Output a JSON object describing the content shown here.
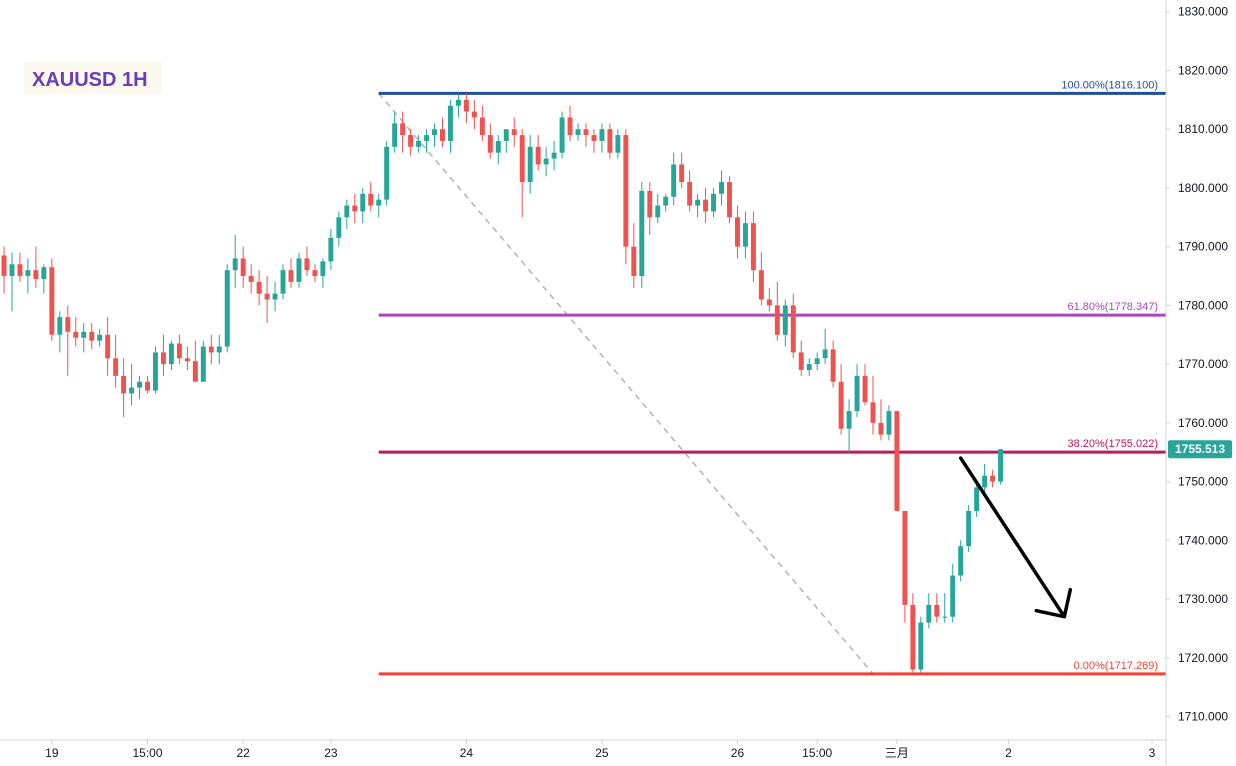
{
  "chart_data": {
    "type": "candlestick",
    "title": "XAUUSD 1H",
    "y_axis": {
      "ylim": [
        1706,
        1832
      ],
      "ticks": [
        "1830.000",
        "1820.000",
        "1810.000",
        "1800.000",
        "1790.000",
        "1780.000",
        "1770.000",
        "1760.000",
        "1750.000",
        "1740.000",
        "1730.000",
        "1720.000",
        "1710.000"
      ],
      "tick_values": [
        1830,
        1820,
        1810,
        1800,
        1790,
        1780,
        1770,
        1760,
        1750,
        1740,
        1730,
        1720,
        1710
      ],
      "position": "right"
    },
    "x_axis": {
      "ticks": [
        {
          "label": "19",
          "index": 6
        },
        {
          "label": "15:00",
          "index": 18
        },
        {
          "label": "22",
          "index": 30
        },
        {
          "label": "23",
          "index": 41
        },
        {
          "label": "24",
          "index": 58
        },
        {
          "label": "25",
          "index": 75
        },
        {
          "label": "26",
          "index": 92
        },
        {
          "label": "15:00",
          "index": 102
        },
        {
          "label": "三月",
          "index": 112
        },
        {
          "label": "2",
          "index": 126
        },
        {
          "label": "3",
          "index": 144
        }
      ],
      "index_range": [
        0,
        145
      ]
    },
    "colors": {
      "up": "#26a69a",
      "down": "#ef5350",
      "fib_100": "#1f4e9c",
      "fib_618": "#ab47bc",
      "fib_382": "#c2185b",
      "fib_0": "#f44336",
      "trend": "#b2b2b2",
      "price_badge": "#26a69a",
      "arrow": "#000000"
    },
    "price_label": "1755.513",
    "price_value": 1755.513,
    "fib_levels": [
      {
        "label": "100.00%(1816.100)",
        "value": 1816.1,
        "color_key": "fib_100"
      },
      {
        "label": "61.80%(1778.347)",
        "value": 1778.347,
        "color_key": "fib_618"
      },
      {
        "label": "38.20%(1755.022)",
        "value": 1755.022,
        "color_key": "fib_382"
      },
      {
        "label": "0.00%(1717.269)",
        "value": 1717.269,
        "color_key": "fib_0"
      }
    ],
    "fib_start_index": 47,
    "trend_line": {
      "from": [
        47,
        1816.1
      ],
      "to": [
        109,
        1717.269
      ]
    },
    "arrow": {
      "from": [
        120,
        1754
      ],
      "to": [
        133,
        1727
      ]
    },
    "candles": [
      [
        1788.5,
        1790.0,
        1782.0,
        1785.0
      ],
      [
        1785.0,
        1789.0,
        1779.0,
        1787.0
      ],
      [
        1787.0,
        1789.0,
        1784.0,
        1785.0
      ],
      [
        1785.0,
        1788.0,
        1782.0,
        1786.0
      ],
      [
        1786.0,
        1790.0,
        1783.0,
        1784.5
      ],
      [
        1784.5,
        1787.0,
        1782.0,
        1786.5
      ],
      [
        1786.5,
        1788.0,
        1774.0,
        1775.0
      ],
      [
        1775.0,
        1779.0,
        1772.0,
        1778.0
      ],
      [
        1778.0,
        1780.0,
        1768.0,
        1775.5
      ],
      [
        1775.5,
        1778.0,
        1773.0,
        1774.5
      ],
      [
        1774.5,
        1777.0,
        1772.0,
        1775.5
      ],
      [
        1775.5,
        1777.0,
        1772.5,
        1774.0
      ],
      [
        1774.0,
        1776.0,
        1773.0,
        1775.0
      ],
      [
        1775.0,
        1778.0,
        1768.0,
        1771.0
      ],
      [
        1771.0,
        1775.0,
        1766.0,
        1768.0
      ],
      [
        1768.0,
        1771.0,
        1761.0,
        1765.0
      ],
      [
        1765.0,
        1770.0,
        1763.0,
        1766.0
      ],
      [
        1766.0,
        1768.0,
        1764.0,
        1767.0
      ],
      [
        1767.0,
        1768.0,
        1765.0,
        1765.5
      ],
      [
        1765.5,
        1773.0,
        1765.0,
        1772.0
      ],
      [
        1772.0,
        1775.0,
        1768.0,
        1770.0
      ],
      [
        1770.0,
        1774.0,
        1769.0,
        1773.5
      ],
      [
        1773.5,
        1775.0,
        1770.0,
        1771.0
      ],
      [
        1771.0,
        1773.0,
        1769.0,
        1770.5
      ],
      [
        1770.5,
        1774.0,
        1768.0,
        1767.0
      ],
      [
        1767.0,
        1774.0,
        1767.0,
        1773.0
      ],
      [
        1773.0,
        1775.0,
        1770.0,
        1772.0
      ],
      [
        1772.0,
        1775.0,
        1770.0,
        1773.0
      ],
      [
        1773.0,
        1787.0,
        1772.0,
        1786.0
      ],
      [
        1786.0,
        1792.0,
        1783.0,
        1788.0
      ],
      [
        1788.0,
        1790.0,
        1783.0,
        1785.0
      ],
      [
        1785.0,
        1787.0,
        1782.0,
        1784.0
      ],
      [
        1784.0,
        1786.0,
        1780.0,
        1782.0
      ],
      [
        1782.0,
        1785.0,
        1777.0,
        1781.0
      ],
      [
        1781.0,
        1784.0,
        1779.0,
        1782.0
      ],
      [
        1782.0,
        1787.0,
        1781.0,
        1786.0
      ],
      [
        1786.0,
        1788.0,
        1783.0,
        1784.0
      ],
      [
        1784.0,
        1789.0,
        1783.0,
        1788.0
      ],
      [
        1788.0,
        1790.0,
        1785.0,
        1786.0
      ],
      [
        1786.0,
        1787.0,
        1784.0,
        1785.0
      ],
      [
        1785.0,
        1788.0,
        1783.0,
        1787.5
      ],
      [
        1787.5,
        1793.0,
        1786.0,
        1791.5
      ],
      [
        1791.5,
        1796.0,
        1790.0,
        1795.0
      ],
      [
        1795.0,
        1798.0,
        1793.0,
        1797.0
      ],
      [
        1797.0,
        1799.0,
        1794.0,
        1796.0
      ],
      [
        1796.0,
        1800.0,
        1794.0,
        1799.0
      ],
      [
        1799.0,
        1801.0,
        1796.0,
        1797.0
      ],
      [
        1797.0,
        1799.0,
        1795.0,
        1798.0
      ],
      [
        1798.0,
        1808.0,
        1797.0,
        1807.0
      ],
      [
        1807.0,
        1813.0,
        1806.0,
        1811.0
      ],
      [
        1811.0,
        1813.0,
        1806.0,
        1809.0
      ],
      [
        1809.0,
        1810.0,
        1805.5,
        1807.0
      ],
      [
        1807.0,
        1809.0,
        1806.0,
        1808.0
      ],
      [
        1808.0,
        1810.0,
        1806.0,
        1809.0
      ],
      [
        1809.0,
        1811.0,
        1807.0,
        1810.0
      ],
      [
        1810.0,
        1812.0,
        1807.0,
        1808.0
      ],
      [
        1808.0,
        1815.0,
        1806.0,
        1814.0
      ],
      [
        1814.0,
        1816.1,
        1812.0,
        1815.0
      ],
      [
        1815.0,
        1816.0,
        1811.0,
        1813.0
      ],
      [
        1813.0,
        1815.0,
        1810.0,
        1812.0
      ],
      [
        1812.0,
        1814.0,
        1808.0,
        1809.0
      ],
      [
        1809.0,
        1811.0,
        1805.0,
        1806.0
      ],
      [
        1806.0,
        1809.0,
        1804.0,
        1808.0
      ],
      [
        1808.0,
        1810.0,
        1806.0,
        1810.0
      ],
      [
        1810.0,
        1812.0,
        1807.0,
        1809.0
      ],
      [
        1809.0,
        1810.0,
        1795.0,
        1801.0
      ],
      [
        1801.0,
        1809.0,
        1799.0,
        1807.0
      ],
      [
        1807.0,
        1809.0,
        1803.0,
        1804.0
      ],
      [
        1804.0,
        1807.0,
        1802.0,
        1805.0
      ],
      [
        1805.0,
        1808.0,
        1803.0,
        1806.0
      ],
      [
        1806.0,
        1813.0,
        1805.0,
        1812.0
      ],
      [
        1812.0,
        1814.0,
        1808.0,
        1809.0
      ],
      [
        1809.0,
        1811.0,
        1808.0,
        1810.0
      ],
      [
        1810.0,
        1811.0,
        1807.0,
        1809.0
      ],
      [
        1809.0,
        1810.0,
        1806.0,
        1808.0
      ],
      [
        1808.0,
        1811.0,
        1806.0,
        1810.0
      ],
      [
        1810.0,
        1811.0,
        1805.0,
        1806.0
      ],
      [
        1806.0,
        1810.0,
        1805.0,
        1809.0
      ],
      [
        1809.0,
        1810.0,
        1787.0,
        1790.0
      ],
      [
        1790.0,
        1794.0,
        1783.0,
        1785.0
      ],
      [
        1785.0,
        1801.0,
        1783.0,
        1799.5
      ],
      [
        1799.5,
        1801.0,
        1792.0,
        1795.0
      ],
      [
        1795.0,
        1799.0,
        1794.0,
        1797.0
      ],
      [
        1797.0,
        1799.0,
        1796.0,
        1798.5
      ],
      [
        1798.5,
        1806.0,
        1797.0,
        1804.0
      ],
      [
        1804.0,
        1806.0,
        1800.0,
        1801.0
      ],
      [
        1801.0,
        1803.0,
        1796.0,
        1797.0
      ],
      [
        1797.0,
        1799.0,
        1795.0,
        1798.0
      ],
      [
        1798.0,
        1800.0,
        1794.0,
        1796.0
      ],
      [
        1796.0,
        1800.0,
        1795.0,
        1799.0
      ],
      [
        1799.0,
        1803.0,
        1797.0,
        1801.0
      ],
      [
        1801.0,
        1802.0,
        1794.0,
        1795.0
      ],
      [
        1795.0,
        1797.0,
        1788.0,
        1790.0
      ],
      [
        1790.0,
        1796.0,
        1788.0,
        1794.0
      ],
      [
        1794.0,
        1796.0,
        1784.0,
        1786.0
      ],
      [
        1786.0,
        1789.0,
        1780.0,
        1781.0
      ],
      [
        1781.0,
        1783.0,
        1779.0,
        1780.0
      ],
      [
        1780.0,
        1784.0,
        1774.0,
        1775.0
      ],
      [
        1775.0,
        1781.0,
        1773.0,
        1780.0
      ],
      [
        1780.0,
        1782.0,
        1771.0,
        1772.0
      ],
      [
        1772.0,
        1774.0,
        1768.0,
        1769.0
      ],
      [
        1769.0,
        1771.0,
        1768.0,
        1770.0
      ],
      [
        1770.0,
        1772.0,
        1769.0,
        1771.0
      ],
      [
        1771.0,
        1776.0,
        1770.0,
        1772.5
      ],
      [
        1772.5,
        1774.0,
        1766.0,
        1767.0
      ],
      [
        1767.0,
        1770.0,
        1758.0,
        1759.0
      ],
      [
        1759.0,
        1764.0,
        1755.0,
        1762.0
      ],
      [
        1762.0,
        1770.0,
        1761.0,
        1768.0
      ],
      [
        1768.0,
        1770.0,
        1763.0,
        1763.5
      ],
      [
        1763.5,
        1768.0,
        1758.0,
        1760.0
      ],
      [
        1760.0,
        1764.0,
        1757.0,
        1758.0
      ],
      [
        1758.0,
        1763.0,
        1757.0,
        1762.0
      ],
      [
        1762.0,
        1762.0,
        1745.0,
        1745.0
      ],
      [
        1745.0,
        1745.0,
        1726.0,
        1729.0
      ],
      [
        1729.0,
        1731.0,
        1717.269,
        1718.0
      ],
      [
        1718.0,
        1727.0,
        1717.5,
        1726.0
      ],
      [
        1726.0,
        1731.0,
        1725.0,
        1729.0
      ],
      [
        1729.0,
        1731.0,
        1726.0,
        1727.0
      ],
      [
        1727.0,
        1731.0,
        1726.0,
        1727.0
      ],
      [
        1727.0,
        1736.0,
        1726.0,
        1734.0
      ],
      [
        1734.0,
        1740.0,
        1733.0,
        1739.0
      ],
      [
        1739.0,
        1746.0,
        1738.0,
        1745.0
      ],
      [
        1745.0,
        1750.0,
        1744.0,
        1749.0
      ],
      [
        1749.0,
        1753.0,
        1748.0,
        1751.0
      ],
      [
        1751.0,
        1752.0,
        1749.0,
        1750.0
      ],
      [
        1750.0,
        1755.513,
        1749.5,
        1755.513
      ]
    ]
  }
}
